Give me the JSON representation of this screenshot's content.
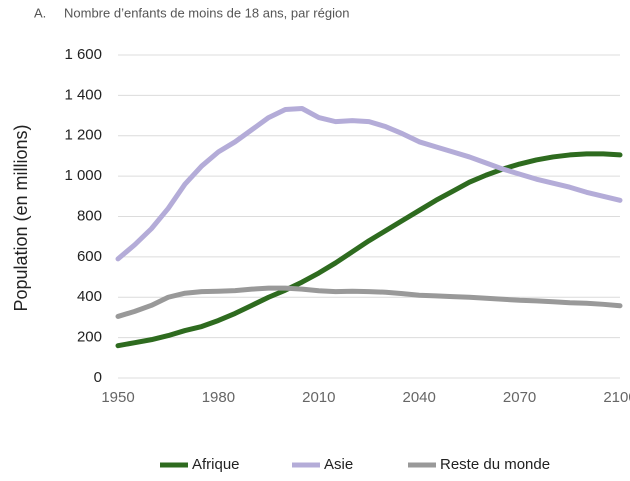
{
  "chart_data": {
    "type": "line",
    "panel_label": "A.",
    "title": "Nombre d’enfants de moins de 18 ans, par région",
    "y_label": "Population (en millions)",
    "x": [
      1950,
      1955,
      1960,
      1965,
      1970,
      1975,
      1980,
      1985,
      1990,
      1995,
      2000,
      2005,
      2010,
      2015,
      2020,
      2025,
      2030,
      2035,
      2040,
      2045,
      2050,
      2055,
      2060,
      2065,
      2070,
      2075,
      2080,
      2085,
      2090,
      2095,
      2100
    ],
    "series": [
      {
        "name": "Afrique",
        "color": "#2e6b1f",
        "values": [
          160,
          175,
          190,
          210,
          235,
          255,
          285,
          320,
          360,
          400,
          435,
          475,
          520,
          570,
          625,
          680,
          730,
          780,
          830,
          880,
          925,
          970,
          1005,
          1035,
          1060,
          1080,
          1095,
          1105,
          1110,
          1110,
          1105
        ]
      },
      {
        "name": "Asie",
        "color": "#b4acd8",
        "values": [
          590,
          660,
          740,
          840,
          960,
          1050,
          1120,
          1170,
          1230,
          1290,
          1330,
          1335,
          1290,
          1270,
          1275,
          1270,
          1245,
          1210,
          1170,
          1145,
          1120,
          1095,
          1065,
          1035,
          1010,
          985,
          965,
          945,
          920,
          900,
          880
        ]
      },
      {
        "name": "Reste du monde",
        "color": "#999999",
        "values": [
          305,
          330,
          360,
          400,
          420,
          428,
          430,
          433,
          440,
          445,
          445,
          440,
          432,
          428,
          430,
          428,
          425,
          418,
          410,
          407,
          403,
          400,
          395,
          390,
          385,
          382,
          378,
          373,
          370,
          365,
          358
        ]
      }
    ],
    "xlim": [
      1950,
      2100
    ],
    "xticks": [
      1950,
      1980,
      2010,
      2040,
      2070,
      2100
    ],
    "ylim": [
      0,
      1600
    ],
    "yticks": [
      0,
      200,
      400,
      600,
      800,
      {
        "value": 1000,
        "label": "1 000"
      },
      {
        "value": 1200,
        "label": "1 200"
      },
      {
        "value": 1400,
        "label": "1 400"
      },
      {
        "value": 1600,
        "label": "1 600"
      }
    ],
    "grid": true,
    "legend": "bottom"
  }
}
